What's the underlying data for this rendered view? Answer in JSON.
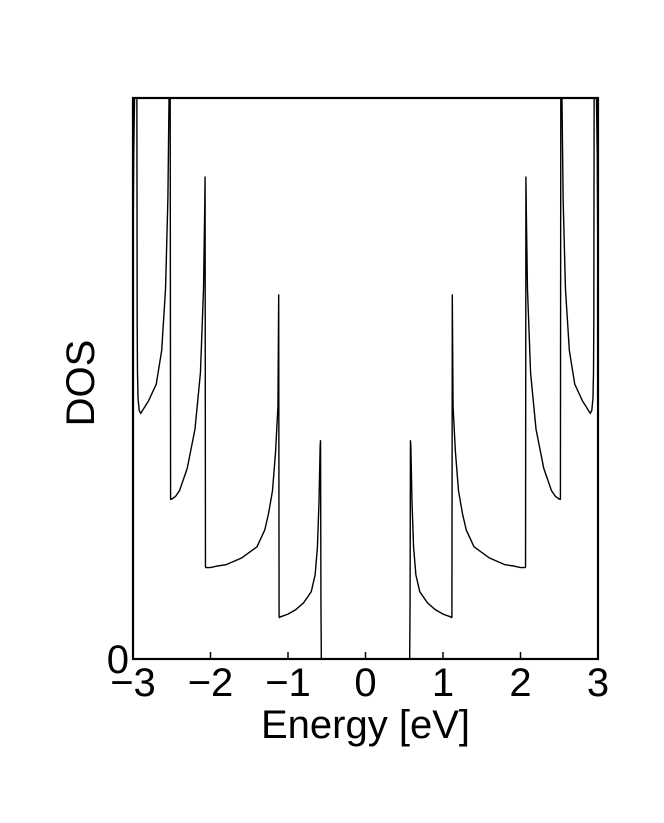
{
  "chart_data": {
    "type": "line",
    "title": "",
    "xlabel": "Energy [eV]",
    "ylabel": "DOS",
    "xlim": [
      -3,
      3
    ],
    "ylim": [
      0,
      1
    ],
    "x_ticks": [
      -3,
      -2,
      -1,
      0,
      1,
      2,
      3
    ],
    "x_tick_labels": [
      "−3",
      "−2",
      "−1",
      "0",
      "1",
      "2",
      "3"
    ],
    "y_ticks": [
      0
    ],
    "y_tick_labels": [
      "0"
    ],
    "grid": false,
    "series": [
      {
        "line_color": "#000000",
        "x": [
          -3.0,
          -2.99,
          -2.98,
          -2.97,
          -2.96,
          -2.95,
          -2.948,
          -2.946,
          -2.942,
          -2.935,
          -2.92,
          -2.9,
          -2.8,
          -2.7,
          -2.63,
          -2.58,
          -2.55,
          -2.535,
          -2.52,
          -2.515,
          -2.5,
          -2.45,
          -2.4,
          -2.3,
          -2.2,
          -2.13,
          -2.09,
          -2.075,
          -2.07,
          -2.065,
          -2.06,
          -2.05,
          -2.0,
          -1.9,
          -1.8,
          -1.6,
          -1.4,
          -1.3,
          -1.25,
          -1.2,
          -1.16,
          -1.13,
          -1.12,
          -1.115,
          -1.11,
          -1.1,
          -1.0,
          -0.9,
          -0.8,
          -0.7,
          -0.65,
          -0.62,
          -0.6,
          -0.585,
          -0.58,
          -0.575,
          -0.57,
          -0.56,
          0.56,
          0.57,
          0.575,
          0.58,
          0.585,
          0.6,
          0.62,
          0.65,
          0.7,
          0.8,
          0.9,
          1.0,
          1.1,
          1.11,
          1.115,
          1.12,
          1.13,
          1.16,
          1.2,
          1.25,
          1.3,
          1.4,
          1.6,
          1.8,
          1.9,
          2.0,
          2.05,
          2.06,
          2.065,
          2.07,
          2.075,
          2.09,
          2.13,
          2.2,
          2.3,
          2.4,
          2.45,
          2.5,
          2.515,
          2.52,
          2.535,
          2.55,
          2.58,
          2.63,
          2.7,
          2.8,
          2.9,
          2.92,
          2.935,
          2.942,
          2.946,
          2.948,
          2.95,
          2.96,
          2.97,
          2.98,
          2.99,
          3.0
        ],
        "y": [
          0.72,
          0.9,
          1.0,
          1.0,
          1.0,
          1.0,
          0.8,
          0.6,
          0.51,
          0.465,
          0.443,
          0.438,
          0.46,
          0.49,
          0.55,
          0.66,
          0.82,
          1.0,
          1.0,
          0.285,
          0.285,
          0.29,
          0.3,
          0.34,
          0.41,
          0.51,
          0.66,
          0.8,
          0.86,
          0.165,
          0.163,
          0.163,
          0.163,
          0.166,
          0.168,
          0.18,
          0.2,
          0.23,
          0.26,
          0.3,
          0.37,
          0.45,
          0.65,
          0.075,
          0.074,
          0.075,
          0.08,
          0.088,
          0.1,
          0.12,
          0.15,
          0.2,
          0.28,
          0.38,
          0.39,
          0.1,
          0.0,
          0.0,
          0.0,
          0.0,
          0.1,
          0.39,
          0.38,
          0.28,
          0.2,
          0.15,
          0.12,
          0.1,
          0.088,
          0.08,
          0.075,
          0.074,
          0.075,
          0.65,
          0.45,
          0.37,
          0.3,
          0.26,
          0.23,
          0.2,
          0.18,
          0.168,
          0.166,
          0.163,
          0.163,
          0.163,
          0.165,
          0.86,
          0.8,
          0.66,
          0.51,
          0.41,
          0.34,
          0.3,
          0.29,
          0.285,
          0.285,
          1.0,
          1.0,
          0.82,
          0.66,
          0.55,
          0.49,
          0.46,
          0.438,
          0.443,
          0.465,
          0.51,
          0.6,
          0.8,
          1.0,
          1.0,
          1.0,
          1.0,
          0.9,
          0.68
        ]
      }
    ]
  }
}
